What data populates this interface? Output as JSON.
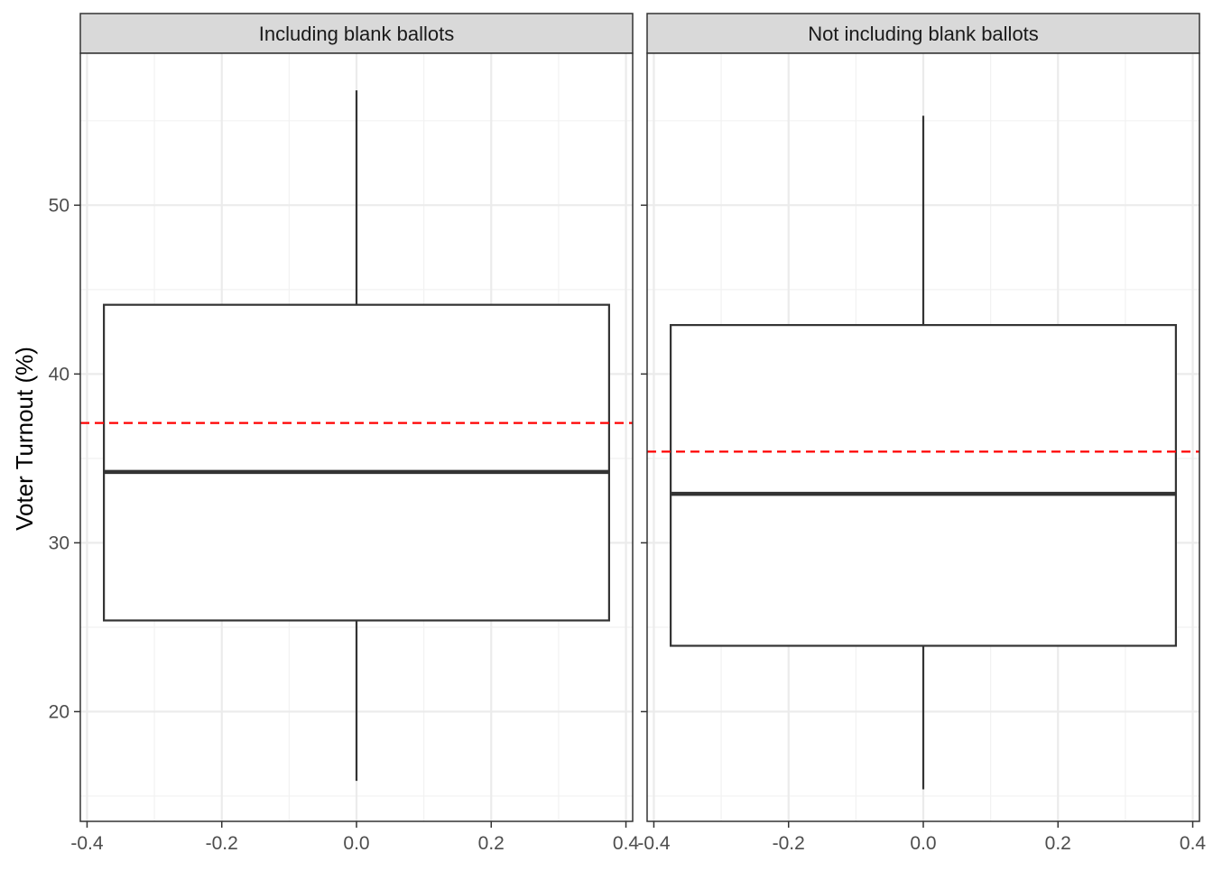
{
  "chart_data": {
    "type": "boxplot",
    "ylabel": "Voter Turnout (%)",
    "xlabel": "",
    "xlim": [
      -0.41,
      0.41
    ],
    "ylim": [
      13.5,
      59.0
    ],
    "x_ticks": [
      -0.4,
      -0.2,
      0.0,
      0.2,
      0.4
    ],
    "x_tick_labels": [
      "-0.4",
      "-0.2",
      "0.0",
      "0.2",
      "0.4"
    ],
    "y_ticks": [
      20,
      30,
      40,
      50
    ],
    "y_tick_labels": [
      "20",
      "30",
      "40",
      "50"
    ],
    "grid": true,
    "colors": {
      "box": "#333333",
      "reference_line": "#ff0000",
      "strip": "#d9d9d9",
      "grid_major": "#ebebeb",
      "grid_minor": "#f2f2f2"
    },
    "panels": [
      {
        "strip_label": "Including blank ballots",
        "box": {
          "x_min": -0.375,
          "x_max": 0.375,
          "whisker_low": 15.9,
          "q1": 25.4,
          "median": 34.2,
          "q3": 44.1,
          "whisker_high": 56.8
        },
        "reference_line": 37.1
      },
      {
        "strip_label": "Not including blank ballots",
        "box": {
          "x_min": -0.375,
          "x_max": 0.375,
          "whisker_low": 15.4,
          "q1": 23.9,
          "median": 32.9,
          "q3": 42.9,
          "whisker_high": 55.3
        },
        "reference_line": 35.4
      }
    ]
  }
}
